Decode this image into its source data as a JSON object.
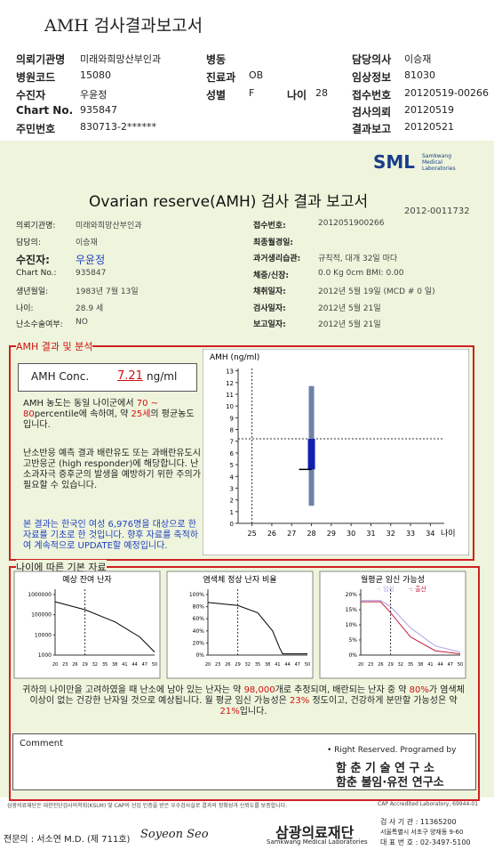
{
  "header": {
    "title": "AMH 검사결과보고서",
    "fields": [
      {
        "label": "의뢰기관명",
        "value": "미래와희망산부인과"
      },
      {
        "label": "병동"
      },
      {
        "label": "담당의사",
        "value": "이승재"
      },
      {
        "label": "병원코드",
        "value": "15080"
      },
      {
        "label": "진료과",
        "value": "OB"
      },
      {
        "label": "임상정보",
        "value": "81030"
      },
      {
        "label": "수진자",
        "value": "우윤정"
      },
      {
        "label": "성별",
        "value": "F"
      },
      {
        "label": "나이",
        "value": "28"
      },
      {
        "label": "접수번호",
        "value": "20120519-00266"
      },
      {
        "label": "Chart No.",
        "value": "935847"
      },
      {
        "label": "검사의뢰",
        "value": "20120519"
      },
      {
        "label": "주민번호",
        "value": "830713-2******"
      },
      {
        "label": "결과보고",
        "value": "20120521"
      }
    ]
  },
  "report": {
    "logo": "SML",
    "logo_sub": "Samkwang Medical Laboratories",
    "title": "Ovarian reserve(AMH) 검사 결과 보고서",
    "doc_no": "2012-0011732",
    "left_fields": [
      {
        "label": "의뢰기관명:",
        "value": "미래와희망산부인과"
      },
      {
        "label": "담당의:",
        "value": "이승재"
      },
      {
        "label": "수진자:",
        "value": "우윤정"
      },
      {
        "label": "Chart No.:",
        "value": "935847"
      },
      {
        "label": "생년월일:",
        "value": "1983년 7월 13일"
      },
      {
        "label": "나이:",
        "value": "28.9 세"
      },
      {
        "label": "난소수술여부:",
        "value": "NO"
      }
    ],
    "right_fields": [
      {
        "label": "접수번호:",
        "value": "2012051900266"
      },
      {
        "label": "최종월경일:"
      },
      {
        "label": "과거생리습관:",
        "value": "규칙적, 대개 32일 마다"
      },
      {
        "label": "체중/신장:",
        "value": "0.0 Kg 0cm BMI: 0.00"
      },
      {
        "label": "채취일자:",
        "value": "2012년 5월 19일 (MCD # 0 일)"
      },
      {
        "label": "검사일자:",
        "value": "2012년 5월 21일"
      },
      {
        "label": "보고일자:",
        "value": "2012년 5월 21일"
      }
    ]
  },
  "amh": {
    "section": "AMH 결과 및 분석",
    "conc_label": "AMH Conc.",
    "value": 7.21,
    "value_label": "7.21",
    "unit": "ng/ml",
    "para1": [
      "AMH 농도는 동일 나이군에서 ",
      "70 ~ 80",
      "percentile에 속하며, 약 ",
      "25세",
      "의 평균농도입니다."
    ],
    "para2": "난소반응 예측 결과 배란유도 또는 과배란유도시 고반응군 (high responder)에 해당합니다. 난소과자극 증후군의 발생을 예방하기 위한 주의가 필요할 수 있습니다.",
    "para3": "본 결과는 한국인 여성 6,976명을 대상으로 한 자료를 기초로 한 것입니다. 향후 자료를 축적하여 계속적으로 UPDATE할 예정입니다.",
    "chart": {
      "type": "box",
      "ylabel": "AMH (ng/ml)",
      "xlabel": "나이",
      "xlim": [
        24.3,
        34.7
      ],
      "ylim": [
        0,
        13.2
      ],
      "xticks": [
        25,
        26,
        27,
        28,
        29,
        30,
        31,
        32,
        33,
        34
      ],
      "yticks": [
        0,
        1,
        2,
        3,
        4,
        5,
        6,
        7,
        8,
        9,
        10,
        11,
        12,
        13
      ],
      "reference_age": 25,
      "x": 28,
      "range": [
        1.5,
        11.7
      ],
      "box": [
        4.6,
        7.2
      ],
      "range_color": "#6f82a8",
      "box_color": "#1020b0"
    }
  },
  "basic": {
    "section": "나이에 따른 기본 자료",
    "charts": [
      {
        "title": "예상 잔여 난자",
        "yticks": [
          1000000,
          100000,
          10000,
          1000
        ],
        "xticks": [
          20,
          23,
          26,
          29,
          32,
          35,
          38,
          41,
          44,
          47,
          50
        ]
      },
      {
        "title": "염색체 정상 난자 비율",
        "yticks": [
          {
            "value": 100,
            "label": "100%"
          },
          {
            "value": 80,
            "label": "80%"
          },
          {
            "value": 60,
            "label": "60%"
          },
          {
            "value": 40,
            "label": "40%"
          },
          {
            "value": 20,
            "label": "20%"
          },
          {
            "value": 0,
            "label": "0%"
          }
        ],
        "xticks": [
          20,
          23,
          26,
          29,
          32,
          35,
          38,
          41,
          44,
          47,
          50
        ]
      },
      {
        "title": "월평균 임신 가능성",
        "legend": [
          "-: 임신",
          "-: 출산"
        ],
        "yticks": [
          {
            "value": 20,
            "label": "20%"
          },
          {
            "value": 15,
            "label": "15%"
          },
          {
            "value": 10,
            "label": "10%"
          },
          {
            "value": 5,
            "label": "5%"
          },
          {
            "value": 0,
            "label": "0%"
          }
        ],
        "xticks": [
          20,
          23,
          26,
          29,
          32,
          35,
          38,
          41,
          44,
          47,
          50
        ]
      }
    ],
    "summary": [
      "귀하의 나이만을 고려하였을 때 난소에 남아 있는 난자는 약 ",
      "98,000",
      "개로 추정되며, 배란되는 난자 중 약 ",
      "80%",
      "가 염색체이상이 없는 건강한 난자일 것으로 예상됩니다. 월 평균 임신 가능성은 ",
      "23%",
      " 정도이고, 건강하게 분만할 가능성은 약 ",
      "21%",
      "입니다."
    ]
  },
  "comment": "Comment",
  "credit": {
    "line1": "• Right Reserved. Programed by",
    "line2": "함 춘 기 술 연 구 소",
    "line3": "함춘 불임·유전 연구소"
  },
  "footer": {
    "note": "삼광의료재단은 대한진단검사의학회(KSLM) 및 CAP의 선임 인증을 받은 우수검사실로 결과의 정확성과 신뢰도를 보증합니다.",
    "cap": "CAP Accredited Laboratory, 69944-01",
    "doctor": "전문의 : 서소연 M.D. (제 711호)",
    "signature": "Soyeon Seo",
    "org": "삼광의료재단",
    "org_en": "Samkwang Medical Laboratories",
    "info": [
      "검 사 기 관 : 11365200",
      "서울특별시 서초구 양재동 9-60",
      "대 표 번 호 : 02-3497-5100"
    ]
  }
}
